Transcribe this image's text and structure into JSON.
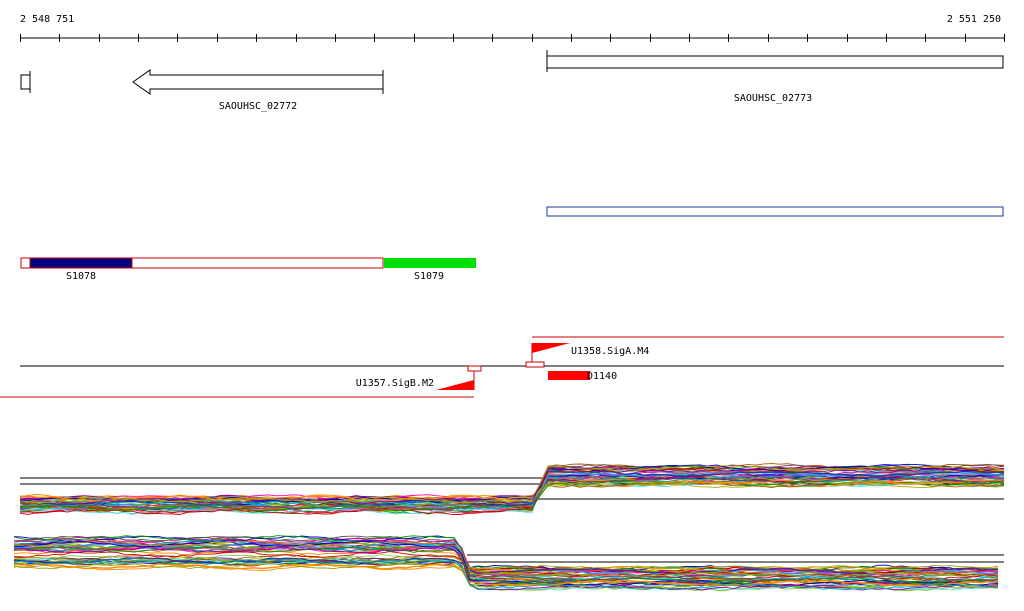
{
  "ruler": {
    "start_label": "2 548 751",
    "end_label": "2 551 250"
  },
  "genes": [
    {
      "name": "SAOUHSC_02772",
      "strand": "-"
    },
    {
      "name": "SAOUHSC_02773",
      "strand": "+"
    }
  ],
  "segments": [
    {
      "name": "S1078",
      "color": "#000080"
    },
    {
      "name": "S1079",
      "color": "#00dd00"
    }
  ],
  "sites": [
    {
      "name": "U1358.SigA.M4",
      "strand": "+",
      "color": "#ff0000"
    },
    {
      "name": "U1357.SigB.M2",
      "strand": "-",
      "color": "#ff0000"
    },
    {
      "name": "D1140",
      "color": "#ff0000"
    }
  ],
  "colors": {
    "outline": "#000000",
    "feature_box": "#1a3a9a",
    "segment_outline": "#cc0000",
    "tss_line": "#cc0000"
  },
  "expression_palette": [
    "#cc0000",
    "#0000cc",
    "#009900",
    "#ff8800",
    "#990099",
    "#00aaaa",
    "#aaaa00",
    "#555555",
    "#ff00aa",
    "#4488ff",
    "#88cc44",
    "#aa5500",
    "#66ddff",
    "#dd4477",
    "#333399",
    "#88aa00"
  ]
}
